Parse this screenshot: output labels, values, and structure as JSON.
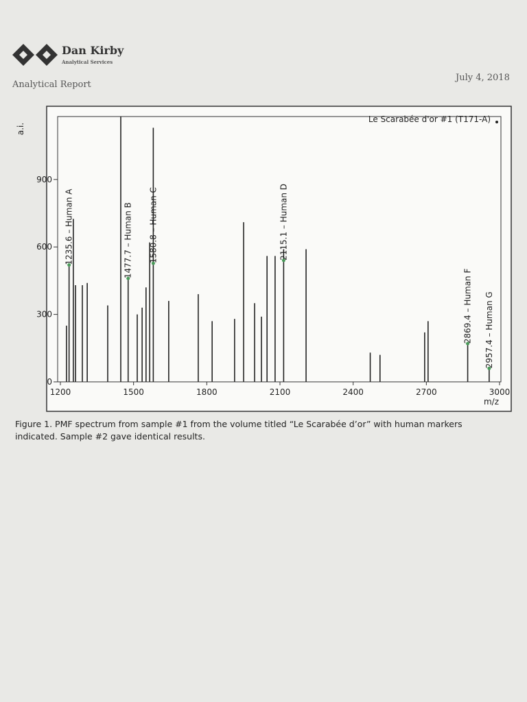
{
  "header": {
    "company": "Dan Kirby",
    "subtitle": "Analytical Services",
    "report_title": "Analytical Report",
    "date": "July 4, 2018"
  },
  "chart_data": {
    "type": "stem",
    "title": "Le Scarabée d'or #1 (T171-A)",
    "y_label": "a.i.",
    "x_label": "m/z",
    "color": "#222",
    "x": [
      1225,
      1235.6,
      1253,
      1262,
      1290,
      1310,
      1394,
      1447.5,
      1477.7,
      1515,
      1535,
      1551,
      1566,
      1580.8,
      1644,
      1765,
      1822,
      1914,
      1951,
      1996,
      2024,
      2047,
      2080,
      2115.1,
      2207,
      2470,
      2510,
      2693,
      2707,
      2869.4,
      2957.4
    ],
    "values": [
      250,
      520,
      725,
      430,
      430,
      440,
      340,
      1180,
      460,
      300,
      330,
      420,
      620,
      1130,
      360,
      390,
      270,
      280,
      710,
      350,
      290,
      560,
      560,
      590,
      590,
      130,
      120,
      220,
      270,
      170,
      60
    ],
    "xlim": [
      1200,
      3000
    ],
    "ylim": [
      0,
      1180
    ],
    "xticks": [
      1200,
      1500,
      1800,
      2100,
      2400,
      2700,
      3000
    ],
    "yticks": [
      0,
      300,
      600,
      900
    ],
    "annotations": [
      {
        "x": 1235.6,
        "y": 520,
        "label": "1235.6 – Human A"
      },
      {
        "x": 1477.7,
        "y": 460,
        "label": "1477.7 – Human B"
      },
      {
        "x": 1580.8,
        "y": 527,
        "label": "1580.8 – Human C"
      },
      {
        "x": 2115.1,
        "y": 540,
        "label": "2115.1 – Human D"
      },
      {
        "x": 2869.4,
        "y": 170,
        "label": "2869.4 – Human F"
      },
      {
        "x": 2957.4,
        "y": 60,
        "label": "2957.4 – Human G"
      }
    ]
  },
  "caption": "Figure 1. PMF spectrum from sample #1 from the volume titled “Le Scarabée d’or” with human markers indicated. Sample #2 gave identical results."
}
